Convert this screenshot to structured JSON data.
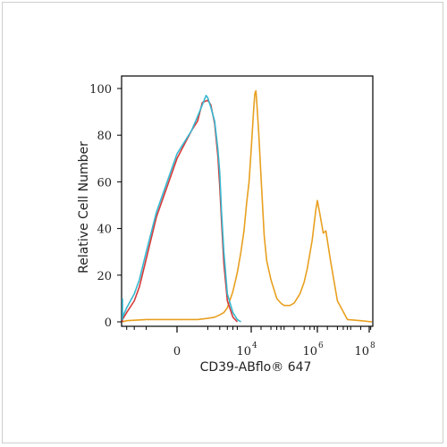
{
  "chart_data": {
    "type": "line",
    "title": "",
    "xlabel": "CD39-ABflo® 647",
    "ylabel": "Relative Cell Number",
    "xscale": "biexponential",
    "ylim": [
      0,
      100
    ],
    "yticks": [
      {
        "value": 0,
        "label": "0"
      },
      {
        "value": 20,
        "label": "20"
      },
      {
        "value": 40,
        "label": "40"
      },
      {
        "value": 60,
        "label": "60"
      },
      {
        "value": 80,
        "label": "80"
      },
      {
        "value": 100,
        "label": "100"
      }
    ],
    "xticks": [
      {
        "value": 0,
        "base": "0",
        "exp": ""
      },
      {
        "value": 10000,
        "base": "10",
        "exp": "4"
      },
      {
        "value": 1000000,
        "base": "10",
        "exp": "6"
      },
      {
        "value": 100000000,
        "base": "10",
        "exp": "8"
      }
    ],
    "grid": false,
    "legend": "none",
    "series": [
      {
        "color": "#e8a020",
        "x": [
          -5000,
          -3000,
          -1000,
          0,
          500,
          1000,
          1500,
          2000,
          2500,
          3000,
          4000,
          5000,
          6000,
          7000,
          8000,
          9000,
          10000,
          12000,
          13000,
          14000,
          15000,
          17000,
          20000,
          25000,
          30000,
          40000,
          60000,
          80000,
          100000,
          150000,
          200000,
          300000,
          400000,
          500000,
          700000,
          900000,
          1000000,
          1200000,
          1500000,
          1800000,
          2500000,
          4000000,
          8000000,
          20000000,
          100000000
        ],
        "y": [
          0,
          0.5,
          1,
          1,
          1,
          1.5,
          2,
          3,
          4,
          6,
          13,
          21,
          30,
          39,
          51,
          60,
          74,
          92,
          98,
          99,
          93,
          81,
          62,
          37,
          26,
          18,
          10,
          8,
          7,
          7,
          8,
          12,
          17,
          23,
          35,
          48,
          52,
          46,
          38,
          39,
          26,
          9,
          1,
          0.5,
          0
        ]
      },
      {
        "color": "#d63a3a",
        "x": [
          -5000,
          -4000,
          -3000,
          -2000,
          -1500,
          -1000,
          -500,
          0,
          300,
          500,
          700,
          1000,
          1200,
          1500,
          1800,
          2000,
          2200,
          2500,
          3000,
          4000,
          5000
        ],
        "y": [
          0,
          1,
          4,
          9,
          15,
          27,
          45,
          70,
          82,
          86,
          94,
          95,
          93,
          85,
          71,
          58,
          43,
          25,
          9,
          2,
          0
        ]
      },
      {
        "color": "#36b8d0",
        "x": [
          -7000,
          -6000,
          -5000,
          -4000,
          -3000,
          -2000,
          -1500,
          -1000,
          -500,
          0,
          300,
          500,
          700,
          900,
          1000,
          1200,
          1500,
          1800,
          2000,
          2200,
          2500,
          3000,
          4000,
          5000,
          6000
        ],
        "y": [
          10,
          3,
          1,
          2,
          6,
          12,
          18,
          30,
          47,
          72,
          82,
          88,
          93,
          97,
          96,
          92,
          86,
          74,
          64,
          47,
          30,
          12,
          4,
          1,
          0
        ]
      }
    ]
  }
}
